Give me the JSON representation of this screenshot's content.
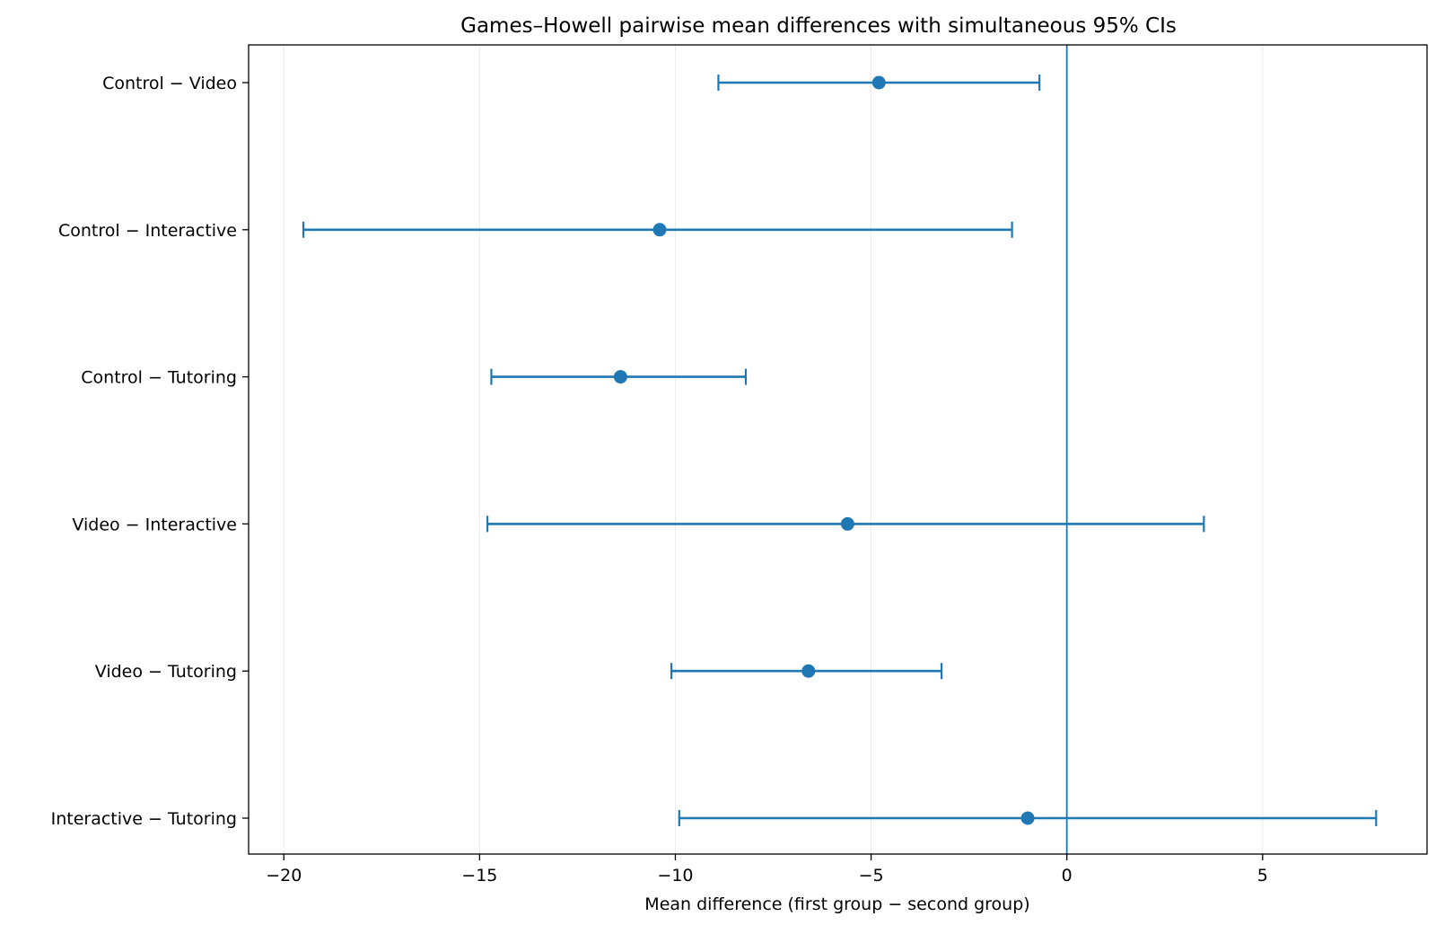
{
  "chart_data": {
    "type": "forest",
    "title": "Games–Howell pairwise mean differences with simultaneous 95% CIs",
    "xlabel": "Mean difference (first group − second group)",
    "ylabel": "",
    "xlim": [
      -20.9,
      9.2
    ],
    "xticks": [
      -20,
      -15,
      -10,
      -5,
      0,
      5
    ],
    "xtick_labels": [
      "−20",
      "−15",
      "−10",
      "−5",
      "0",
      "5"
    ],
    "grid": "vertical",
    "reference_line": 0,
    "comparisons": [
      {
        "label": "Control − Video",
        "estimate": -4.8,
        "lower": -8.9,
        "upper": -0.7
      },
      {
        "label": "Control − Interactive",
        "estimate": -10.4,
        "lower": -19.5,
        "upper": -1.4
      },
      {
        "label": "Control − Tutoring",
        "estimate": -11.4,
        "lower": -14.7,
        "upper": -8.2
      },
      {
        "label": "Video − Interactive",
        "estimate": -5.6,
        "lower": -14.8,
        "upper": 3.5
      },
      {
        "label": "Video − Tutoring",
        "estimate": -6.6,
        "lower": -10.1,
        "upper": -3.2
      },
      {
        "label": "Interactive − Tutoring",
        "estimate": -1.0,
        "lower": -9.9,
        "upper": 7.9
      }
    ],
    "colors": {
      "series": "#1f77b4",
      "grid": "#ebebeb",
      "axis": "#000000"
    }
  }
}
